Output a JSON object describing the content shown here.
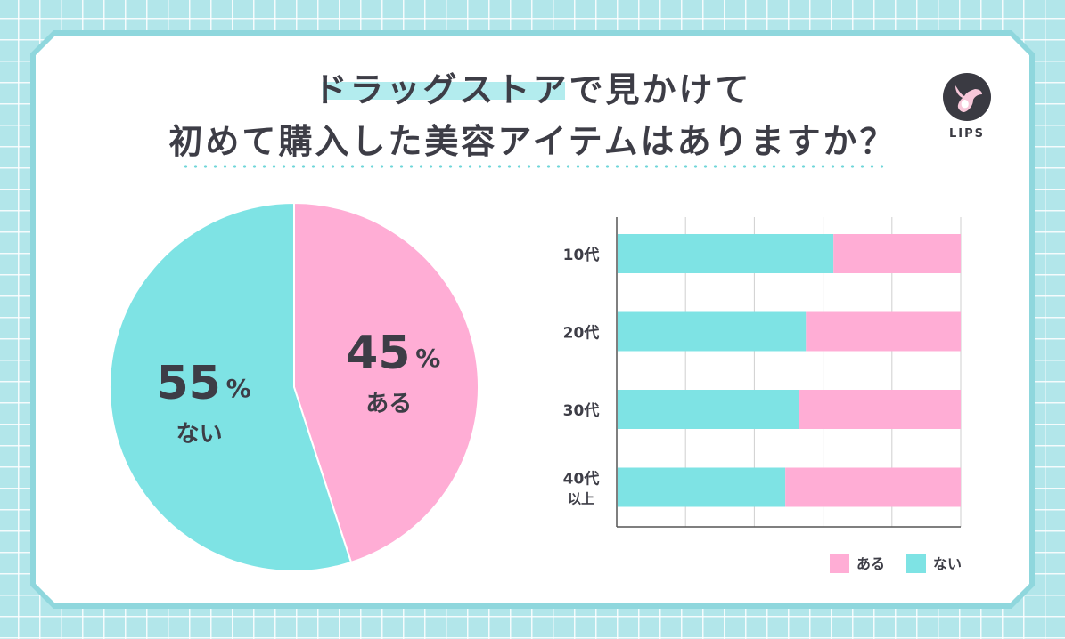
{
  "title": {
    "line1": "ドラッグストアで見かけて",
    "line2": "初めて購入した美容アイテムはありますか？"
  },
  "logo": {
    "text": "LIPS",
    "icon": "deer-icon"
  },
  "colors": {
    "aru": "#ffadd5",
    "nai": "#7ee3e4",
    "text": "#3d3d46",
    "grid": "#cfcfcf",
    "accent": "#8fd7dd"
  },
  "chart_data": [
    {
      "type": "pie",
      "slices": [
        {
          "label": "ある",
          "value": 45,
          "display": "45"
        },
        {
          "label": "ない",
          "value": 55,
          "display": "55"
        }
      ],
      "unit": "%"
    },
    {
      "type": "bar",
      "orientation": "horizontal",
      "stacked": true,
      "normalized": true,
      "categories": [
        {
          "line1": "10代",
          "line2": ""
        },
        {
          "line1": "20代",
          "line2": ""
        },
        {
          "line1": "30代",
          "line2": ""
        },
        {
          "line1": "40代",
          "line2": "以上"
        }
      ],
      "series": [
        {
          "name": "ない",
          "values": [
            63,
            55,
            53,
            49
          ]
        },
        {
          "name": "ある",
          "values": [
            37,
            45,
            47,
            51
          ]
        }
      ],
      "xlim": [
        0,
        100
      ],
      "grid": true,
      "legend": {
        "position": "bottom-right",
        "items": [
          "ある",
          "ない"
        ]
      }
    }
  ]
}
